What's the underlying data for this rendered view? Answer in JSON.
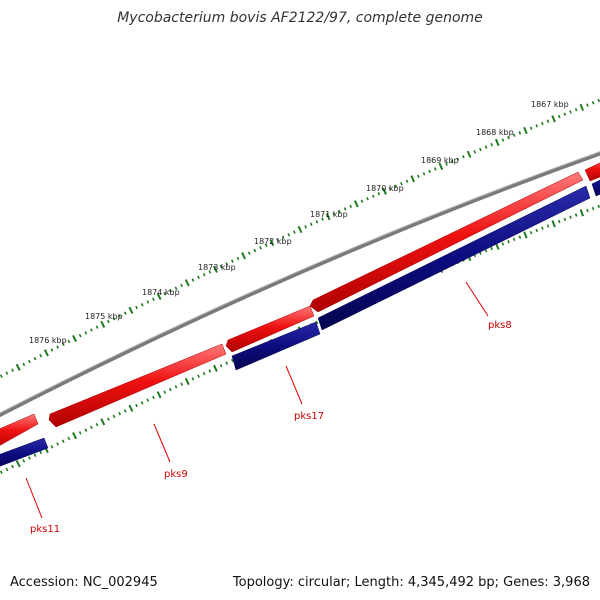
{
  "title": "Mycobacterium bovis AF2122/97, complete genome",
  "footer": {
    "accession": "Accession: NC_002945",
    "summary": "Topology: circular; Length: 4,345,492 bp; Genes: 3,968"
  },
  "colors": {
    "backbone": "#7a7a7a",
    "forward_strand": "#ee1111",
    "reverse_strand": "#0c0c80",
    "ticks": "#1f7a1f",
    "label_line": "#dd0000",
    "label_text": "#cc0000",
    "kbp_text": "#222222"
  },
  "kbp_labels": [
    "1867 kbp",
    "1868 kbp",
    "1869 kbp",
    "1870 kbp",
    "1871 kbp",
    "1872 kbp",
    "1873 kbp",
    "1874 kbp",
    "1875 kbp",
    "1876 kbp"
  ],
  "genes": [
    {
      "label": "pks11"
    },
    {
      "label": "pks9"
    },
    {
      "label": "pks17"
    },
    {
      "label": "pks8"
    }
  ]
}
